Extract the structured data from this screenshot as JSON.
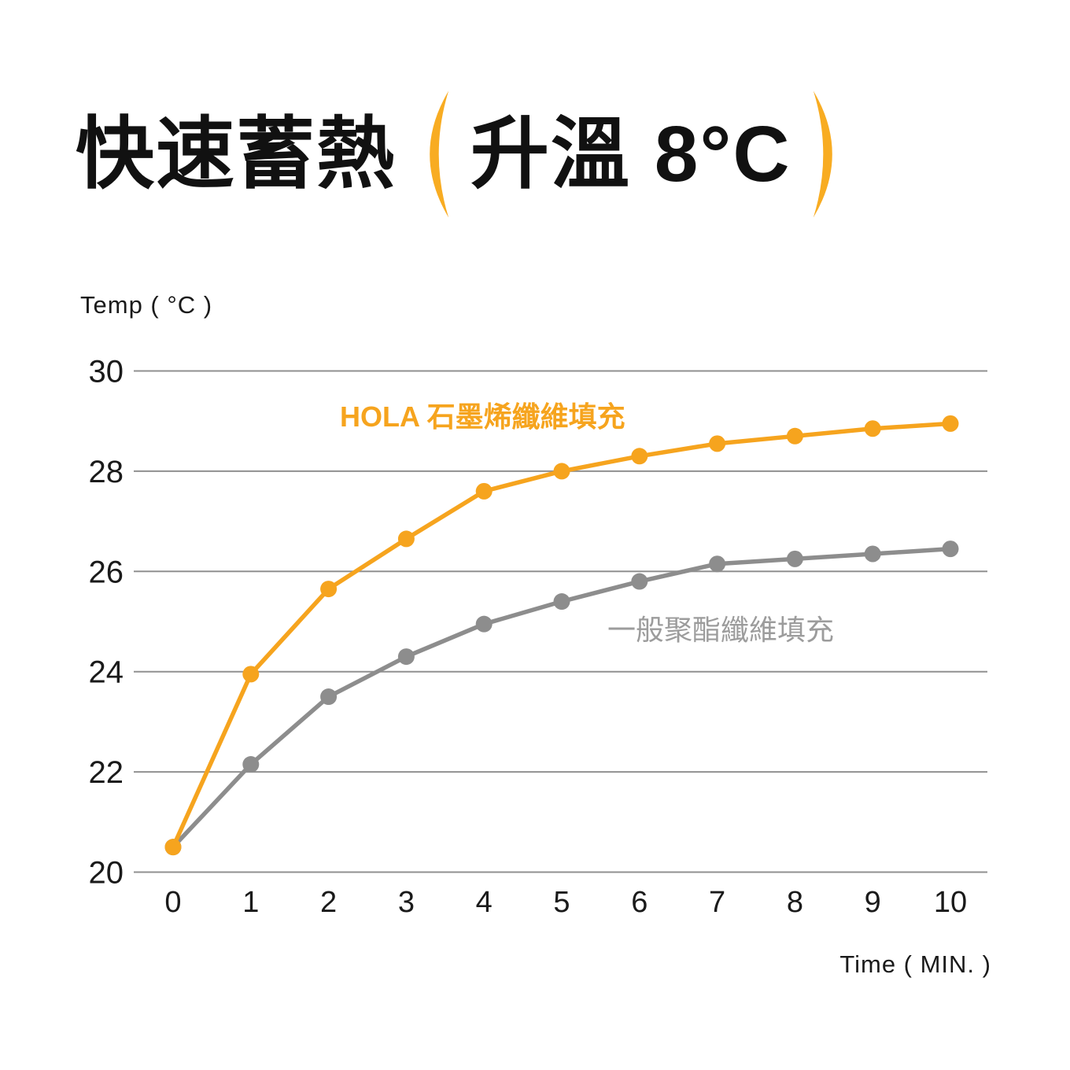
{
  "page": {
    "background": "#ffffff"
  },
  "title": {
    "main": "快速蓄熱",
    "paren_open": "(",
    "paren_text": "升溫 8°C",
    "paren_close": ")",
    "text_color": "#111111",
    "paren_color": "#F8AC22"
  },
  "chart_data": {
    "type": "line",
    "x": [
      0,
      1,
      2,
      3,
      4,
      5,
      6,
      7,
      8,
      9,
      10
    ],
    "xlabel": "Time ( MIN. )",
    "ylabel": "Temp ( °C )",
    "ylim": [
      20,
      30
    ],
    "yticks": [
      20,
      22,
      24,
      26,
      28,
      30
    ],
    "grid": true,
    "gridline_color": "#909090",
    "tick_color": "#1a1a1a",
    "legend_position": "inline-labels",
    "series": [
      {
        "name": "HOLA 石墨烯纖維填充",
        "color": "#F6A41E",
        "label_color": "#F6A41E",
        "values": [
          20.5,
          23.95,
          25.65,
          26.65,
          27.6,
          28.0,
          28.3,
          28.55,
          28.7,
          28.85,
          28.95
        ]
      },
      {
        "name": "一般聚酯纖維填充",
        "color": "#8D8D8D",
        "label_color": "#9C9C9C",
        "values": [
          20.5,
          22.15,
          23.5,
          24.3,
          24.95,
          25.4,
          25.8,
          26.15,
          26.25,
          26.35,
          26.45
        ]
      }
    ]
  }
}
